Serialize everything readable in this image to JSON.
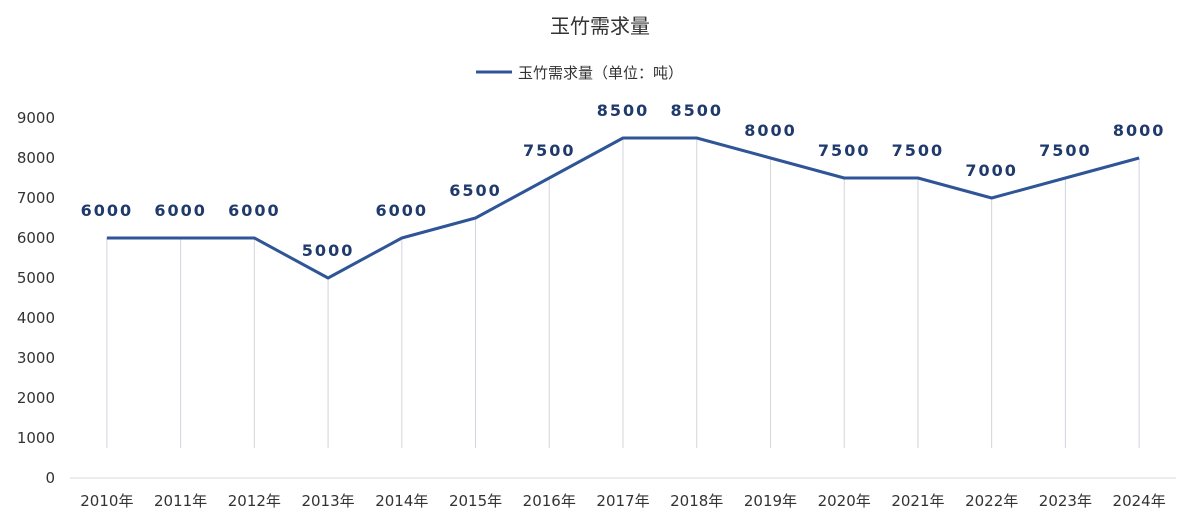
{
  "chart_data": {
    "type": "line",
    "title": "玉竹需求量",
    "categories": [
      "2010年",
      "2011年",
      "2012年",
      "2013年",
      "2014年",
      "2015年",
      "2016年",
      "2017年",
      "2018年",
      "2019年",
      "2020年",
      "2021年",
      "2022年",
      "2023年",
      "2024年"
    ],
    "series": [
      {
        "name": "玉竹需求量（单位：吨）",
        "values": [
          6000,
          6000,
          6000,
          5000,
          6000,
          6500,
          7500,
          8500,
          8500,
          8000,
          7500,
          7500,
          7000,
          7500,
          8000
        ],
        "color": "#2f5597"
      }
    ],
    "data_labels": [
      "6000",
      "6000",
      "6000",
      "5000",
      "6000",
      "6500",
      "7500",
      "8500",
      "8500",
      "8000",
      "7500",
      "7500",
      "7000",
      "7500",
      "8000"
    ],
    "yticks": [
      "0",
      "1000",
      "2000",
      "3000",
      "4000",
      "5000",
      "6000",
      "7000",
      "8000",
      "9000"
    ],
    "ylim": [
      0,
      9000
    ],
    "legend_position": "top-center",
    "grid": false,
    "drop_lines": true
  }
}
